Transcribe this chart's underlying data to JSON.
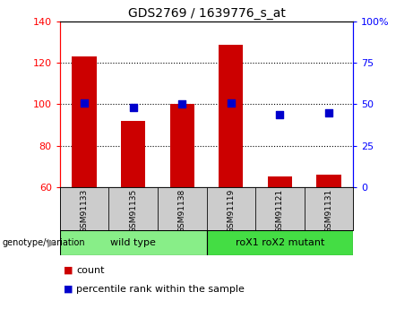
{
  "title": "GDS2769 / 1639776_s_at",
  "samples": [
    "GSM91133",
    "GSM91135",
    "GSM91138",
    "GSM91119",
    "GSM91121",
    "GSM91131"
  ],
  "bar_values": [
    123,
    92,
    100,
    129,
    65,
    66
  ],
  "percentile_values": [
    51,
    48,
    50,
    51,
    44,
    45
  ],
  "ylim_left": [
    60,
    140
  ],
  "ylim_right": [
    0,
    100
  ],
  "yticks_left": [
    60,
    80,
    100,
    120,
    140
  ],
  "yticks_right": [
    0,
    25,
    50,
    75,
    100
  ],
  "ytick_labels_right": [
    "0",
    "25",
    "50",
    "75",
    "100%"
  ],
  "bar_color": "#cc0000",
  "dot_color": "#0000cc",
  "group1_label": "wild type",
  "group2_label": "roX1 roX2 mutant",
  "group1_color": "#88ee88",
  "group2_color": "#44dd44",
  "sample_box_color": "#cccccc",
  "genotype_label": "genotype/variation",
  "legend_count_label": "count",
  "legend_pct_label": "percentile rank within the sample",
  "bar_width": 0.5,
  "dot_size": 30,
  "background_color": "#ffffff"
}
